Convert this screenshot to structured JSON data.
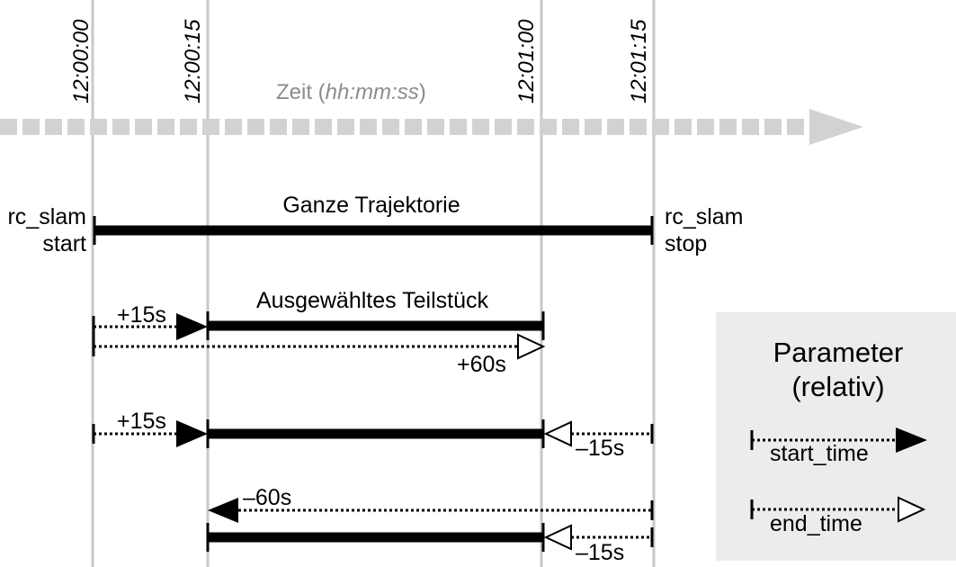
{
  "time_ticks": [
    "12:00:00",
    "12:00:15",
    "12:01:00",
    "12:01:15"
  ],
  "axis_title": {
    "prefix": "Zeit (",
    "italic": "hh:mm:ss",
    "suffix": ")"
  },
  "full_trajectory": {
    "title": "Ganze Trajektorie",
    "start_label": [
      "rc_slam",
      "start"
    ],
    "stop_label": [
      "rc_slam",
      "stop"
    ]
  },
  "examples": [
    {
      "title": "Ausgewähltes Teilstück",
      "start_offset": "+15s",
      "end_offset": "+60s"
    },
    {
      "start_offset": "+15s",
      "end_offset": "–15s"
    },
    {
      "start_offset": "–60s",
      "end_offset": "–15s"
    }
  ],
  "legend": {
    "title": [
      "Parameter",
      "(relativ)"
    ],
    "start_time": "start_time",
    "end_time": "end_time"
  },
  "colors": {
    "gridline": "#c8c8c8",
    "axis_arrow": "#d2d2d2",
    "axis_title": "#8c8c8c",
    "legend_bg": "#ececec",
    "bar": "#000000"
  }
}
